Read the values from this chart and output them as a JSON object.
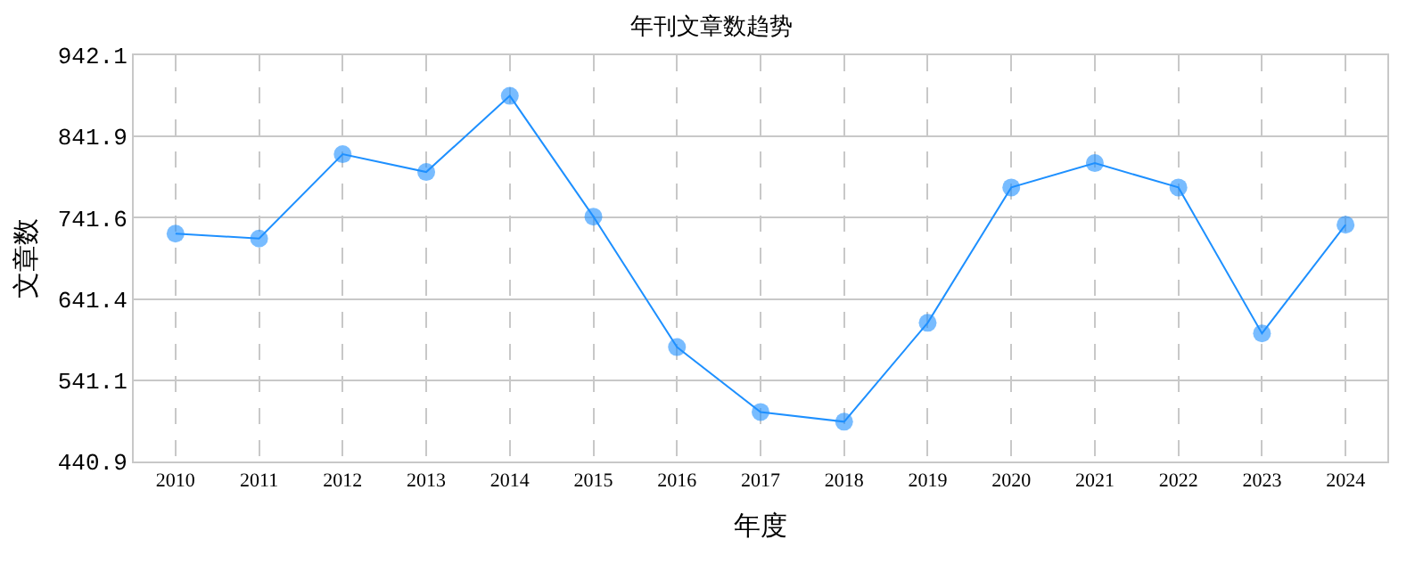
{
  "chart_data": {
    "type": "line",
    "title": "年刊文章数趋势",
    "xlabel": "年度",
    "ylabel": "文章数",
    "categories": [
      "2010",
      "2011",
      "2012",
      "2013",
      "2014",
      "2015",
      "2016",
      "2017",
      "2018",
      "2019",
      "2020",
      "2021",
      "2022",
      "2023",
      "2024"
    ],
    "series": [
      {
        "color": "#1e90ff",
        "values": [
          722,
          716,
          820,
          798,
          892,
          743,
          582,
          502,
          490,
          612,
          779,
          809,
          779,
          599,
          733
        ]
      }
    ],
    "ylim": [
      440.9,
      942.1
    ],
    "yticks": [
      440.9,
      541.1,
      641.4,
      741.6,
      841.9,
      942.1
    ],
    "grid": true,
    "marker": "circle",
    "line_style": "solid",
    "legend": false
  }
}
